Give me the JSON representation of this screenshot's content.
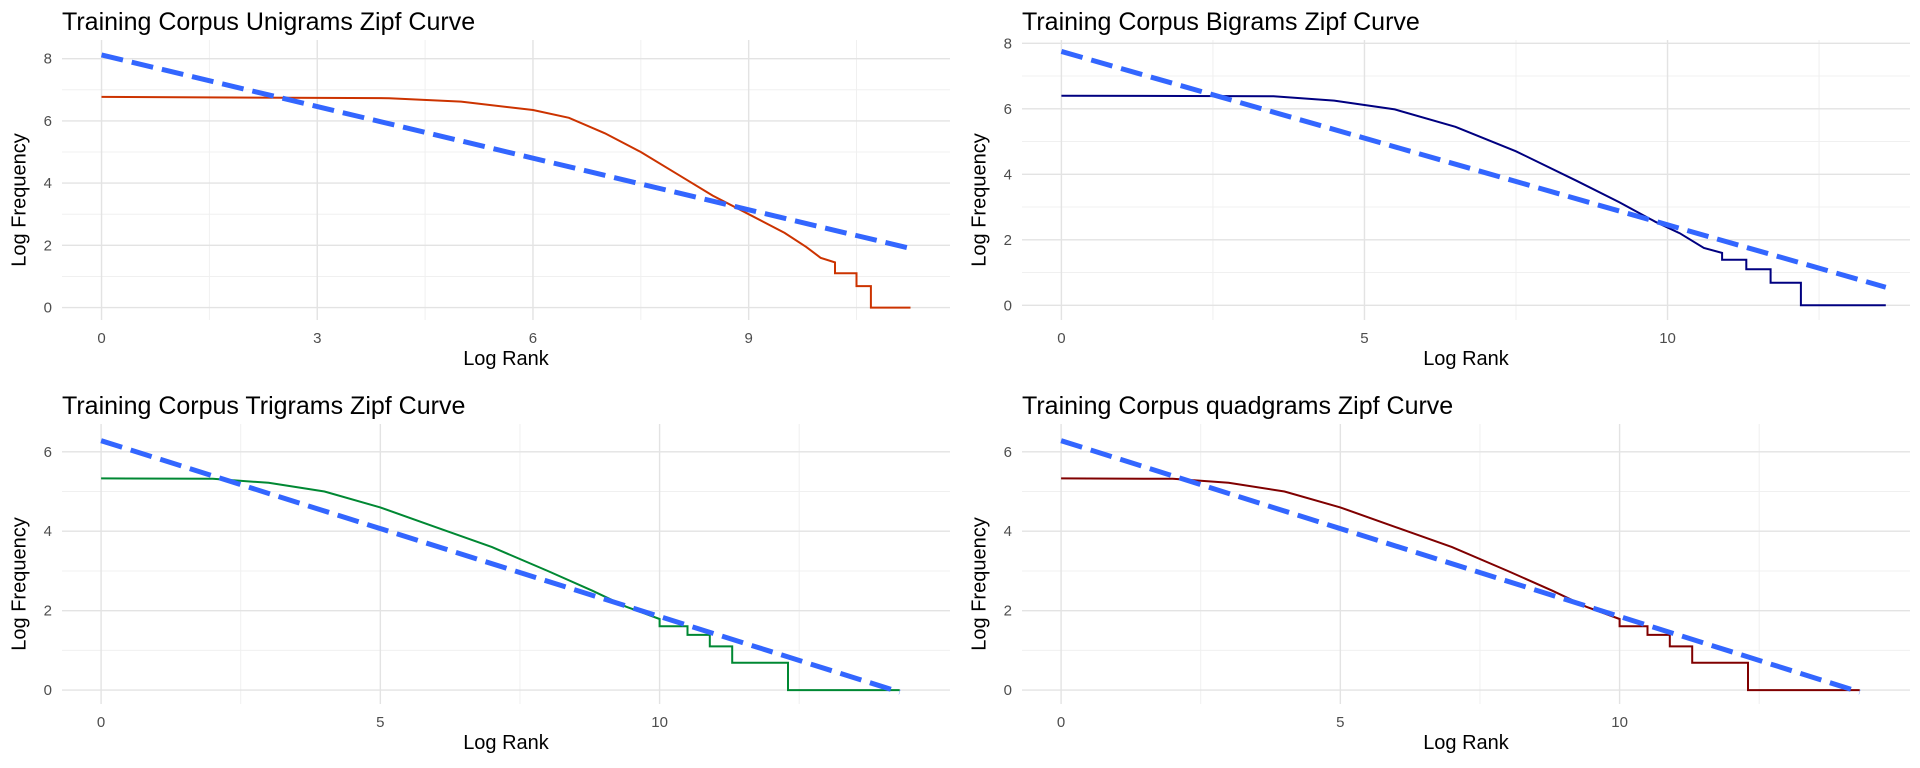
{
  "chart_data": [
    {
      "type": "line",
      "title": "Training Corpus Unigrams Zipf Curve",
      "xlabel": "Log Rank",
      "ylabel": "Log Frequency",
      "xlim": [
        -0.55,
        11.8
      ],
      "ylim": [
        -0.4,
        8.6
      ],
      "xticks": [
        0,
        3,
        6,
        9
      ],
      "yticks": [
        0,
        2,
        4,
        6,
        8
      ],
      "grid": true,
      "legend": "none",
      "observed": {
        "color": "#CC3300",
        "points": [
          [
            0,
            6.77
          ],
          [
            4.0,
            6.73
          ],
          [
            5.0,
            6.62
          ],
          [
            6.0,
            6.35
          ],
          [
            6.5,
            6.1
          ],
          [
            7.0,
            5.6
          ],
          [
            7.5,
            5.0
          ],
          [
            8.0,
            4.3
          ],
          [
            8.5,
            3.6
          ],
          [
            9.0,
            3.0
          ],
          [
            9.5,
            2.4
          ],
          [
            9.8,
            1.95
          ],
          [
            10.0,
            1.6
          ],
          [
            10.2,
            1.45
          ],
          [
            10.2,
            1.1
          ],
          [
            10.5,
            1.1
          ],
          [
            10.5,
            0.69
          ],
          [
            10.7,
            0.69
          ],
          [
            10.7,
            0.0
          ],
          [
            11.25,
            0.0
          ]
        ]
      },
      "fit": {
        "color": "#3366FF",
        "points": [
          [
            0,
            8.12
          ],
          [
            11.25,
            1.9
          ]
        ]
      }
    },
    {
      "type": "line",
      "title": "Training Corpus Bigrams Zipf Curve",
      "xlabel": "Log Rank",
      "ylabel": "Log Frequency",
      "xlim": [
        -0.65,
        14.0
      ],
      "ylim": [
        -0.45,
        8.1
      ],
      "xticks": [
        0,
        5,
        10
      ],
      "yticks": [
        0,
        2,
        4,
        6,
        8
      ],
      "grid": true,
      "legend": "none",
      "observed": {
        "color": "#000080",
        "points": [
          [
            0,
            6.4
          ],
          [
            3.5,
            6.38
          ],
          [
            4.5,
            6.25
          ],
          [
            5.5,
            5.98
          ],
          [
            6.5,
            5.45
          ],
          [
            7.5,
            4.7
          ],
          [
            8.5,
            3.8
          ],
          [
            9.2,
            3.15
          ],
          [
            9.8,
            2.55
          ],
          [
            10.2,
            2.2
          ],
          [
            10.6,
            1.75
          ],
          [
            10.9,
            1.6
          ],
          [
            10.9,
            1.39
          ],
          [
            11.3,
            1.39
          ],
          [
            11.3,
            1.1
          ],
          [
            11.7,
            1.1
          ],
          [
            11.7,
            0.69
          ],
          [
            12.2,
            0.69
          ],
          [
            12.2,
            0.0
          ],
          [
            13.6,
            0.0
          ]
        ]
      },
      "fit": {
        "color": "#3366FF",
        "points": [
          [
            0,
            7.75
          ],
          [
            13.6,
            0.55
          ]
        ]
      }
    },
    {
      "type": "line",
      "title": "Training Corpus Trigrams Zipf Curve",
      "xlabel": "Log Rank",
      "ylabel": "Log Frequency",
      "xlim": [
        -0.7,
        15.2
      ],
      "ylim": [
        -0.35,
        6.7
      ],
      "xticks": [
        0,
        5,
        10
      ],
      "yticks": [
        0,
        2,
        4,
        6
      ],
      "grid": true,
      "legend": "none",
      "observed": {
        "color": "#008833",
        "points": [
          [
            0,
            5.33
          ],
          [
            2.0,
            5.32
          ],
          [
            3.0,
            5.22
          ],
          [
            4.0,
            5.0
          ],
          [
            5.0,
            4.6
          ],
          [
            6.0,
            4.1
          ],
          [
            7.0,
            3.6
          ],
          [
            8.0,
            3.0
          ],
          [
            8.8,
            2.5
          ],
          [
            9.4,
            2.1
          ],
          [
            10.0,
            1.79
          ],
          [
            10.0,
            1.61
          ],
          [
            10.5,
            1.61
          ],
          [
            10.5,
            1.39
          ],
          [
            10.9,
            1.39
          ],
          [
            10.9,
            1.1
          ],
          [
            11.3,
            1.1
          ],
          [
            11.3,
            0.69
          ],
          [
            12.3,
            0.69
          ],
          [
            12.3,
            0.0
          ],
          [
            14.3,
            0.0
          ]
        ]
      },
      "fit": {
        "color": "#3366FF",
        "points": [
          [
            0,
            6.28
          ],
          [
            14.3,
            -0.05
          ]
        ]
      }
    },
    {
      "type": "line",
      "title": "Training Corpus quadgrams Zipf Curve",
      "xlabel": "Log Rank",
      "ylabel": "Log Frequency",
      "xlim": [
        -0.7,
        15.2
      ],
      "ylim": [
        -0.35,
        6.7
      ],
      "xticks": [
        0,
        5,
        10
      ],
      "yticks": [
        0,
        2,
        4,
        6
      ],
      "grid": true,
      "legend": "none",
      "observed": {
        "color": "#800000",
        "points": [
          [
            0,
            5.33
          ],
          [
            2.0,
            5.32
          ],
          [
            3.0,
            5.22
          ],
          [
            4.0,
            5.0
          ],
          [
            5.0,
            4.6
          ],
          [
            6.0,
            4.1
          ],
          [
            7.0,
            3.6
          ],
          [
            8.0,
            3.0
          ],
          [
            8.8,
            2.5
          ],
          [
            9.4,
            2.1
          ],
          [
            10.0,
            1.79
          ],
          [
            10.0,
            1.61
          ],
          [
            10.5,
            1.61
          ],
          [
            10.5,
            1.39
          ],
          [
            10.9,
            1.39
          ],
          [
            10.9,
            1.1
          ],
          [
            11.3,
            1.1
          ],
          [
            11.3,
            0.69
          ],
          [
            12.3,
            0.69
          ],
          [
            12.3,
            0.0
          ],
          [
            14.3,
            0.0
          ]
        ]
      },
      "fit": {
        "color": "#3366FF",
        "points": [
          [
            0,
            6.28
          ],
          [
            14.3,
            -0.05
          ]
        ]
      }
    }
  ]
}
